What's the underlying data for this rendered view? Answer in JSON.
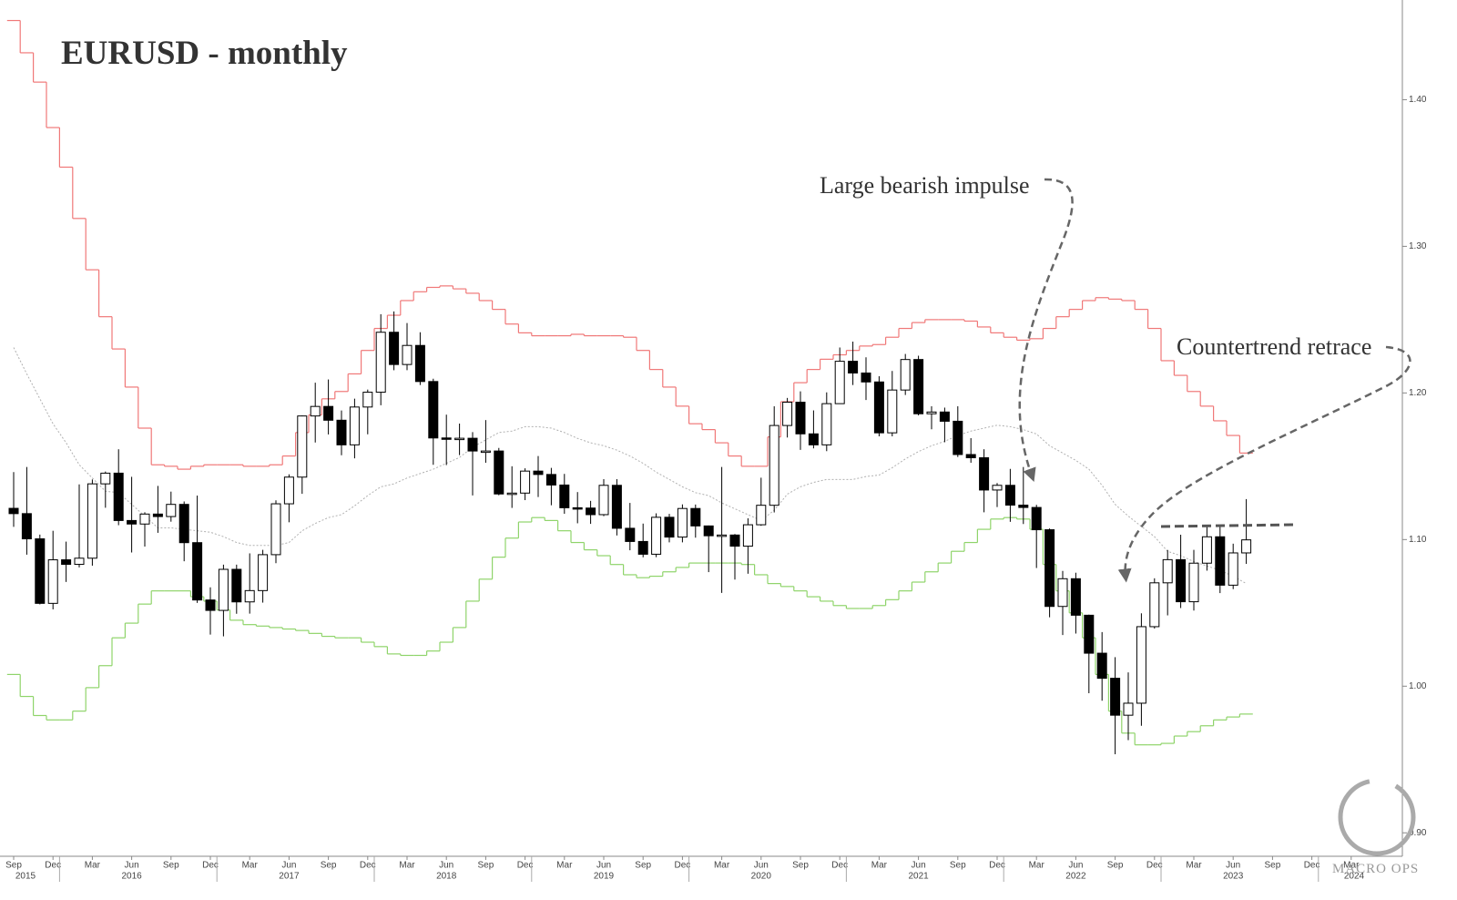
{
  "chart_data": {
    "type": "candlestick",
    "title": "EURUSD - monthly",
    "annotations": [
      "Large bearish impulse",
      "Countertrend retrace"
    ],
    "logo": "MACRO OPS",
    "x": [
      "2015-09",
      "2015-10",
      "2015-11",
      "2015-12",
      "2016-01",
      "2016-02",
      "2016-03",
      "2016-04",
      "2016-05",
      "2016-06",
      "2016-07",
      "2016-08",
      "2016-09",
      "2016-10",
      "2016-11",
      "2016-12",
      "2017-01",
      "2017-02",
      "2017-03",
      "2017-04",
      "2017-05",
      "2017-06",
      "2017-07",
      "2017-08",
      "2017-09",
      "2017-10",
      "2017-11",
      "2017-12",
      "2018-01",
      "2018-02",
      "2018-03",
      "2018-04",
      "2018-05",
      "2018-06",
      "2018-07",
      "2018-08",
      "2018-09",
      "2018-10",
      "2018-11",
      "2018-12",
      "2019-01",
      "2019-02",
      "2019-03",
      "2019-04",
      "2019-05",
      "2019-06",
      "2019-07",
      "2019-08",
      "2019-09",
      "2019-10",
      "2019-11",
      "2019-12",
      "2020-01",
      "2020-02",
      "2020-03",
      "2020-04",
      "2020-05",
      "2020-06",
      "2020-07",
      "2020-08",
      "2020-09",
      "2020-10",
      "2020-11",
      "2020-12",
      "2021-01",
      "2021-02",
      "2021-03",
      "2021-04",
      "2021-05",
      "2021-06",
      "2021-07",
      "2021-08",
      "2021-09",
      "2021-10",
      "2021-11",
      "2021-12",
      "2022-01",
      "2022-02",
      "2022-03",
      "2022-04",
      "2022-05",
      "2022-06",
      "2022-07",
      "2022-08",
      "2022-09",
      "2022-10",
      "2022-11",
      "2022-12",
      "2023-01",
      "2023-02",
      "2023-03",
      "2023-04",
      "2023-05",
      "2023-06",
      "2023-07"
    ],
    "ohlc": [
      [
        1.1213,
        1.146,
        1.1087,
        1.1177
      ],
      [
        1.1177,
        1.1495,
        1.0897,
        1.1005
      ],
      [
        1.1005,
        1.1034,
        1.0558,
        1.0565
      ],
      [
        1.0565,
        1.106,
        1.0524,
        1.0862
      ],
      [
        1.0862,
        1.0986,
        1.0711,
        1.0831
      ],
      [
        1.0831,
        1.1376,
        1.081,
        1.0873
      ],
      [
        1.0873,
        1.141,
        1.0822,
        1.138
      ],
      [
        1.138,
        1.1464,
        1.1217,
        1.1453
      ],
      [
        1.1453,
        1.1616,
        1.1098,
        1.113
      ],
      [
        1.113,
        1.1428,
        1.0912,
        1.1106
      ],
      [
        1.1106,
        1.1186,
        1.0952,
        1.1174
      ],
      [
        1.1174,
        1.1366,
        1.1046,
        1.1157
      ],
      [
        1.1157,
        1.1327,
        1.1122,
        1.124
      ],
      [
        1.124,
        1.126,
        1.0852,
        1.0979
      ],
      [
        1.0979,
        1.13,
        1.0568,
        1.0588
      ],
      [
        1.0588,
        1.0674,
        1.0352,
        1.0517
      ],
      [
        1.0517,
        1.0829,
        1.034,
        1.0797
      ],
      [
        1.0797,
        1.0829,
        1.0494,
        1.0575
      ],
      [
        1.0575,
        1.0906,
        1.0495,
        1.0652
      ],
      [
        1.0652,
        1.093,
        1.057,
        1.0897
      ],
      [
        1.0897,
        1.1268,
        1.0839,
        1.1244
      ],
      [
        1.1244,
        1.1445,
        1.1118,
        1.1426
      ],
      [
        1.1426,
        1.1846,
        1.1312,
        1.1843
      ],
      [
        1.1843,
        1.207,
        1.1662,
        1.1908
      ],
      [
        1.1908,
        1.2092,
        1.1717,
        1.1814
      ],
      [
        1.1814,
        1.188,
        1.1575,
        1.1646
      ],
      [
        1.1646,
        1.1961,
        1.1554,
        1.1904
      ],
      [
        1.1904,
        1.2023,
        1.1718,
        1.2005
      ],
      [
        1.2005,
        1.2537,
        1.1916,
        1.2414
      ],
      [
        1.2414,
        1.2556,
        1.2155,
        1.2194
      ],
      [
        1.2194,
        1.2477,
        1.2155,
        1.2324
      ],
      [
        1.2324,
        1.2414,
        1.2054,
        1.2078
      ],
      [
        1.2078,
        1.2097,
        1.151,
        1.1693
      ],
      [
        1.1693,
        1.1852,
        1.1508,
        1.1684
      ],
      [
        1.1684,
        1.1791,
        1.1576,
        1.1691
      ],
      [
        1.1691,
        1.1733,
        1.1301,
        1.1604
      ],
      [
        1.1604,
        1.1815,
        1.1524,
        1.1604
      ],
      [
        1.1604,
        1.1625,
        1.1302,
        1.1311
      ],
      [
        1.1311,
        1.15,
        1.1216,
        1.1317
      ],
      [
        1.1317,
        1.1486,
        1.1269,
        1.1467
      ],
      [
        1.1467,
        1.157,
        1.129,
        1.1444
      ],
      [
        1.1444,
        1.1489,
        1.1234,
        1.1372
      ],
      [
        1.1372,
        1.1448,
        1.1176,
        1.1217
      ],
      [
        1.1217,
        1.1324,
        1.1111,
        1.1215
      ],
      [
        1.1215,
        1.1264,
        1.1107,
        1.117
      ],
      [
        1.117,
        1.1412,
        1.116,
        1.137
      ],
      [
        1.137,
        1.1412,
        1.1028,
        1.1077
      ],
      [
        1.1077,
        1.125,
        1.0927,
        1.0987
      ],
      [
        1.0987,
        1.1109,
        1.0879,
        1.09
      ],
      [
        1.09,
        1.1179,
        1.088,
        1.1152
      ],
      [
        1.1152,
        1.1175,
        1.0981,
        1.1017
      ],
      [
        1.1017,
        1.124,
        1.0981,
        1.1212
      ],
      [
        1.1212,
        1.1239,
        1.1013,
        1.1093
      ],
      [
        1.1093,
        1.1096,
        1.0778,
        1.1026
      ],
      [
        1.1026,
        1.1495,
        1.0636,
        1.1031
      ],
      [
        1.1031,
        1.1038,
        1.0727,
        1.0955
      ],
      [
        1.0955,
        1.1145,
        1.0767,
        1.1101
      ],
      [
        1.1101,
        1.1422,
        1.1094,
        1.1234
      ],
      [
        1.1234,
        1.1909,
        1.1185,
        1.1778
      ],
      [
        1.1778,
        1.1966,
        1.1696,
        1.1937
      ],
      [
        1.1937,
        1.2011,
        1.1612,
        1.1721
      ],
      [
        1.1721,
        1.1881,
        1.1622,
        1.1646
      ],
      [
        1.1646,
        1.2004,
        1.1603,
        1.1927
      ],
      [
        1.1927,
        1.231,
        1.1925,
        1.2216
      ],
      [
        1.2216,
        1.235,
        1.2054,
        1.2136
      ],
      [
        1.2136,
        1.2243,
        1.1952,
        1.2075
      ],
      [
        1.2075,
        1.2114,
        1.1704,
        1.1728
      ],
      [
        1.1728,
        1.215,
        1.1704,
        1.202
      ],
      [
        1.202,
        1.2266,
        1.1986,
        1.2228
      ],
      [
        1.2228,
        1.2254,
        1.1847,
        1.1858
      ],
      [
        1.1858,
        1.1909,
        1.1752,
        1.187
      ],
      [
        1.187,
        1.19,
        1.1664,
        1.1807
      ],
      [
        1.1807,
        1.1909,
        1.1563,
        1.158
      ],
      [
        1.158,
        1.1692,
        1.1524,
        1.1558
      ],
      [
        1.1558,
        1.1616,
        1.1186,
        1.1338
      ],
      [
        1.1338,
        1.1386,
        1.1222,
        1.137
      ],
      [
        1.137,
        1.1482,
        1.1121,
        1.1235
      ],
      [
        1.1235,
        1.1495,
        1.1106,
        1.1219
      ],
      [
        1.1219,
        1.1237,
        1.0806,
        1.1067
      ],
      [
        1.1067,
        1.1076,
        1.047,
        1.0544
      ],
      [
        1.0544,
        1.0786,
        1.0349,
        1.0733
      ],
      [
        1.0733,
        1.0774,
        1.0359,
        1.0484
      ],
      [
        1.0484,
        1.0488,
        0.9952,
        1.0225
      ],
      [
        1.0225,
        1.0369,
        0.9901,
        1.0054
      ],
      [
        1.0054,
        1.0198,
        0.9536,
        0.9802
      ],
      [
        0.9802,
        1.0094,
        0.9632,
        0.9884
      ],
      [
        0.9884,
        1.0497,
        0.973,
        1.0406
      ],
      [
        1.0406,
        1.0736,
        1.0393,
        1.0705
      ],
      [
        1.0705,
        1.0929,
        1.0483,
        1.0863
      ],
      [
        1.0863,
        1.1033,
        1.0533,
        1.0576
      ],
      [
        1.0576,
        1.093,
        1.0516,
        1.0839
      ],
      [
        1.0839,
        1.1095,
        1.0788,
        1.1019
      ],
      [
        1.1019,
        1.1092,
        1.0635,
        1.0689
      ],
      [
        1.0689,
        1.0972,
        1.0662,
        1.0909
      ],
      [
        1.0909,
        1.1276,
        1.0834,
        1.0998
      ]
    ],
    "up_color": "#ffffff",
    "down_color": "#000000",
    "bands": [
      {
        "color": "#f07878",
        "style": "step",
        "values": [
          1.454,
          1.432,
          1.412,
          1.381,
          1.354,
          1.319,
          1.284,
          1.252,
          1.23,
          1.204,
          1.176,
          1.151,
          1.15,
          1.148,
          1.15,
          1.151,
          1.151,
          1.151,
          1.15,
          1.15,
          1.151,
          1.157,
          1.173,
          1.185,
          1.196,
          1.201,
          1.213,
          1.229,
          1.244,
          1.253,
          1.263,
          1.269,
          1.272,
          1.273,
          1.271,
          1.268,
          1.263,
          1.257,
          1.247,
          1.241,
          1.239,
          1.239,
          1.239,
          1.24,
          1.239,
          1.239,
          1.239,
          1.238,
          1.229,
          1.216,
          1.204,
          1.191,
          1.179,
          1.175,
          1.166,
          1.157,
          1.15,
          1.15,
          1.17,
          1.194,
          1.207,
          1.216,
          1.223,
          1.226,
          1.229,
          1.232,
          1.233,
          1.238,
          1.244,
          1.248,
          1.25,
          1.25,
          1.25,
          1.249,
          1.245,
          1.241,
          1.238,
          1.236,
          1.237,
          1.244,
          1.252,
          1.257,
          1.263,
          1.265,
          1.264,
          1.263,
          1.257,
          1.244,
          1.222,
          1.212,
          1.201,
          1.191,
          1.181,
          1.171,
          1.159
        ]
      },
      {
        "color": "#8fd46a",
        "style": "step",
        "values": [
          1.008,
          0.993,
          0.98,
          0.977,
          0.977,
          0.983,
          0.999,
          1.014,
          1.033,
          1.043,
          1.056,
          1.065,
          1.065,
          1.065,
          1.061,
          1.058,
          1.052,
          1.045,
          1.042,
          1.041,
          1.04,
          1.039,
          1.038,
          1.036,
          1.034,
          1.033,
          1.033,
          1.03,
          1.027,
          1.022,
          1.021,
          1.021,
          1.024,
          1.03,
          1.04,
          1.058,
          1.073,
          1.088,
          1.101,
          1.112,
          1.115,
          1.113,
          1.106,
          1.098,
          1.093,
          1.089,
          1.083,
          1.076,
          1.074,
          1.075,
          1.078,
          1.081,
          1.084,
          1.084,
          1.084,
          1.084,
          1.083,
          1.076,
          1.07,
          1.068,
          1.065,
          1.061,
          1.058,
          1.055,
          1.053,
          1.053,
          1.055,
          1.059,
          1.065,
          1.071,
          1.078,
          1.084,
          1.092,
          1.098,
          1.107,
          1.114,
          1.115,
          1.114,
          1.107,
          1.083,
          1.065,
          1.05,
          1.033,
          1.008,
          0.983,
          0.968,
          0.96,
          0.96,
          0.961,
          0.966,
          0.969,
          0.973,
          0.977,
          0.979,
          0.981
        ]
      },
      {
        "color": "#b0b0b0",
        "style": "dotted",
        "values": [
          1.231,
          1.213,
          1.196,
          1.179,
          1.166,
          1.151,
          1.142,
          1.133,
          1.132,
          1.124,
          1.116,
          1.108,
          1.108,
          1.107,
          1.106,
          1.105,
          1.102,
          1.098,
          1.096,
          1.096,
          1.096,
          1.098,
          1.106,
          1.111,
          1.115,
          1.117,
          1.123,
          1.13,
          1.136,
          1.138,
          1.142,
          1.145,
          1.148,
          1.152,
          1.156,
          1.163,
          1.168,
          1.173,
          1.174,
          1.177,
          1.177,
          1.176,
          1.173,
          1.169,
          1.166,
          1.164,
          1.161,
          1.157,
          1.152,
          1.146,
          1.141,
          1.136,
          1.132,
          1.13,
          1.125,
          1.121,
          1.117,
          1.113,
          1.12,
          1.131,
          1.136,
          1.139,
          1.141,
          1.141,
          1.141,
          1.143,
          1.144,
          1.149,
          1.155,
          1.16,
          1.164,
          1.167,
          1.171,
          1.174,
          1.176,
          1.178,
          1.177,
          1.175,
          1.172,
          1.164,
          1.159,
          1.154,
          1.148,
          1.137,
          1.124,
          1.116,
          1.109,
          1.102,
          1.092,
          1.089,
          1.085,
          1.082,
          1.079,
          1.075,
          1.07
        ]
      }
    ],
    "ylim": [
      0.884,
      1.468
    ],
    "yticks": [
      {
        "value": 0.9,
        "label": "0.90"
      },
      {
        "value": 1.0,
        "label": "1.00"
      },
      {
        "value": 1.1,
        "label": "1.10"
      },
      {
        "value": 1.2,
        "label": "1.20"
      },
      {
        "value": 1.3,
        "label": "1.30"
      },
      {
        "value": 1.4,
        "label": "1.40"
      }
    ],
    "xticks": [
      {
        "value": "2015-09",
        "label": "Sep"
      },
      {
        "value": "2015-12",
        "label": "Dec"
      },
      {
        "value": "2016-03",
        "label": "Mar"
      },
      {
        "value": "2016-06",
        "label": "Jun"
      },
      {
        "value": "2016-09",
        "label": "Sep"
      },
      {
        "value": "2016-12",
        "label": "Dec"
      },
      {
        "value": "2017-03",
        "label": "Mar"
      },
      {
        "value": "2017-06",
        "label": "Jun"
      },
      {
        "value": "2017-09",
        "label": "Sep"
      },
      {
        "value": "2017-12",
        "label": "Dec"
      },
      {
        "value": "2018-03",
        "label": "Mar"
      },
      {
        "value": "2018-06",
        "label": "Jun"
      },
      {
        "value": "2018-09",
        "label": "Sep"
      },
      {
        "value": "2018-12",
        "label": "Dec"
      },
      {
        "value": "2019-03",
        "label": "Mar"
      },
      {
        "value": "2019-06",
        "label": "Jun"
      },
      {
        "value": "2019-09",
        "label": "Sep"
      },
      {
        "value": "2019-12",
        "label": "Dec"
      },
      {
        "value": "2020-03",
        "label": "Mar"
      },
      {
        "value": "2020-06",
        "label": "Jun"
      },
      {
        "value": "2020-09",
        "label": "Sep"
      },
      {
        "value": "2020-12",
        "label": "Dec"
      },
      {
        "value": "2021-03",
        "label": "Mar"
      },
      {
        "value": "2021-06",
        "label": "Jun"
      },
      {
        "value": "2021-09",
        "label": "Sep"
      },
      {
        "value": "2021-12",
        "label": "Dec"
      },
      {
        "value": "2022-03",
        "label": "Mar"
      },
      {
        "value": "2022-06",
        "label": "Jun"
      },
      {
        "value": "2022-09",
        "label": "Sep"
      },
      {
        "value": "2022-12",
        "label": "Dec"
      },
      {
        "value": "2023-03",
        "label": "Mar"
      },
      {
        "value": "2023-06",
        "label": "Jun"
      },
      {
        "value": "2023-09",
        "label": "Sep"
      },
      {
        "value": "2023-12",
        "label": "Dec"
      },
      {
        "value": "2024-03",
        "label": "Mar"
      }
    ],
    "years": [
      "2015",
      "2016",
      "2017",
      "2018",
      "2019",
      "2020",
      "2021",
      "2022",
      "2023",
      "2024"
    ]
  }
}
